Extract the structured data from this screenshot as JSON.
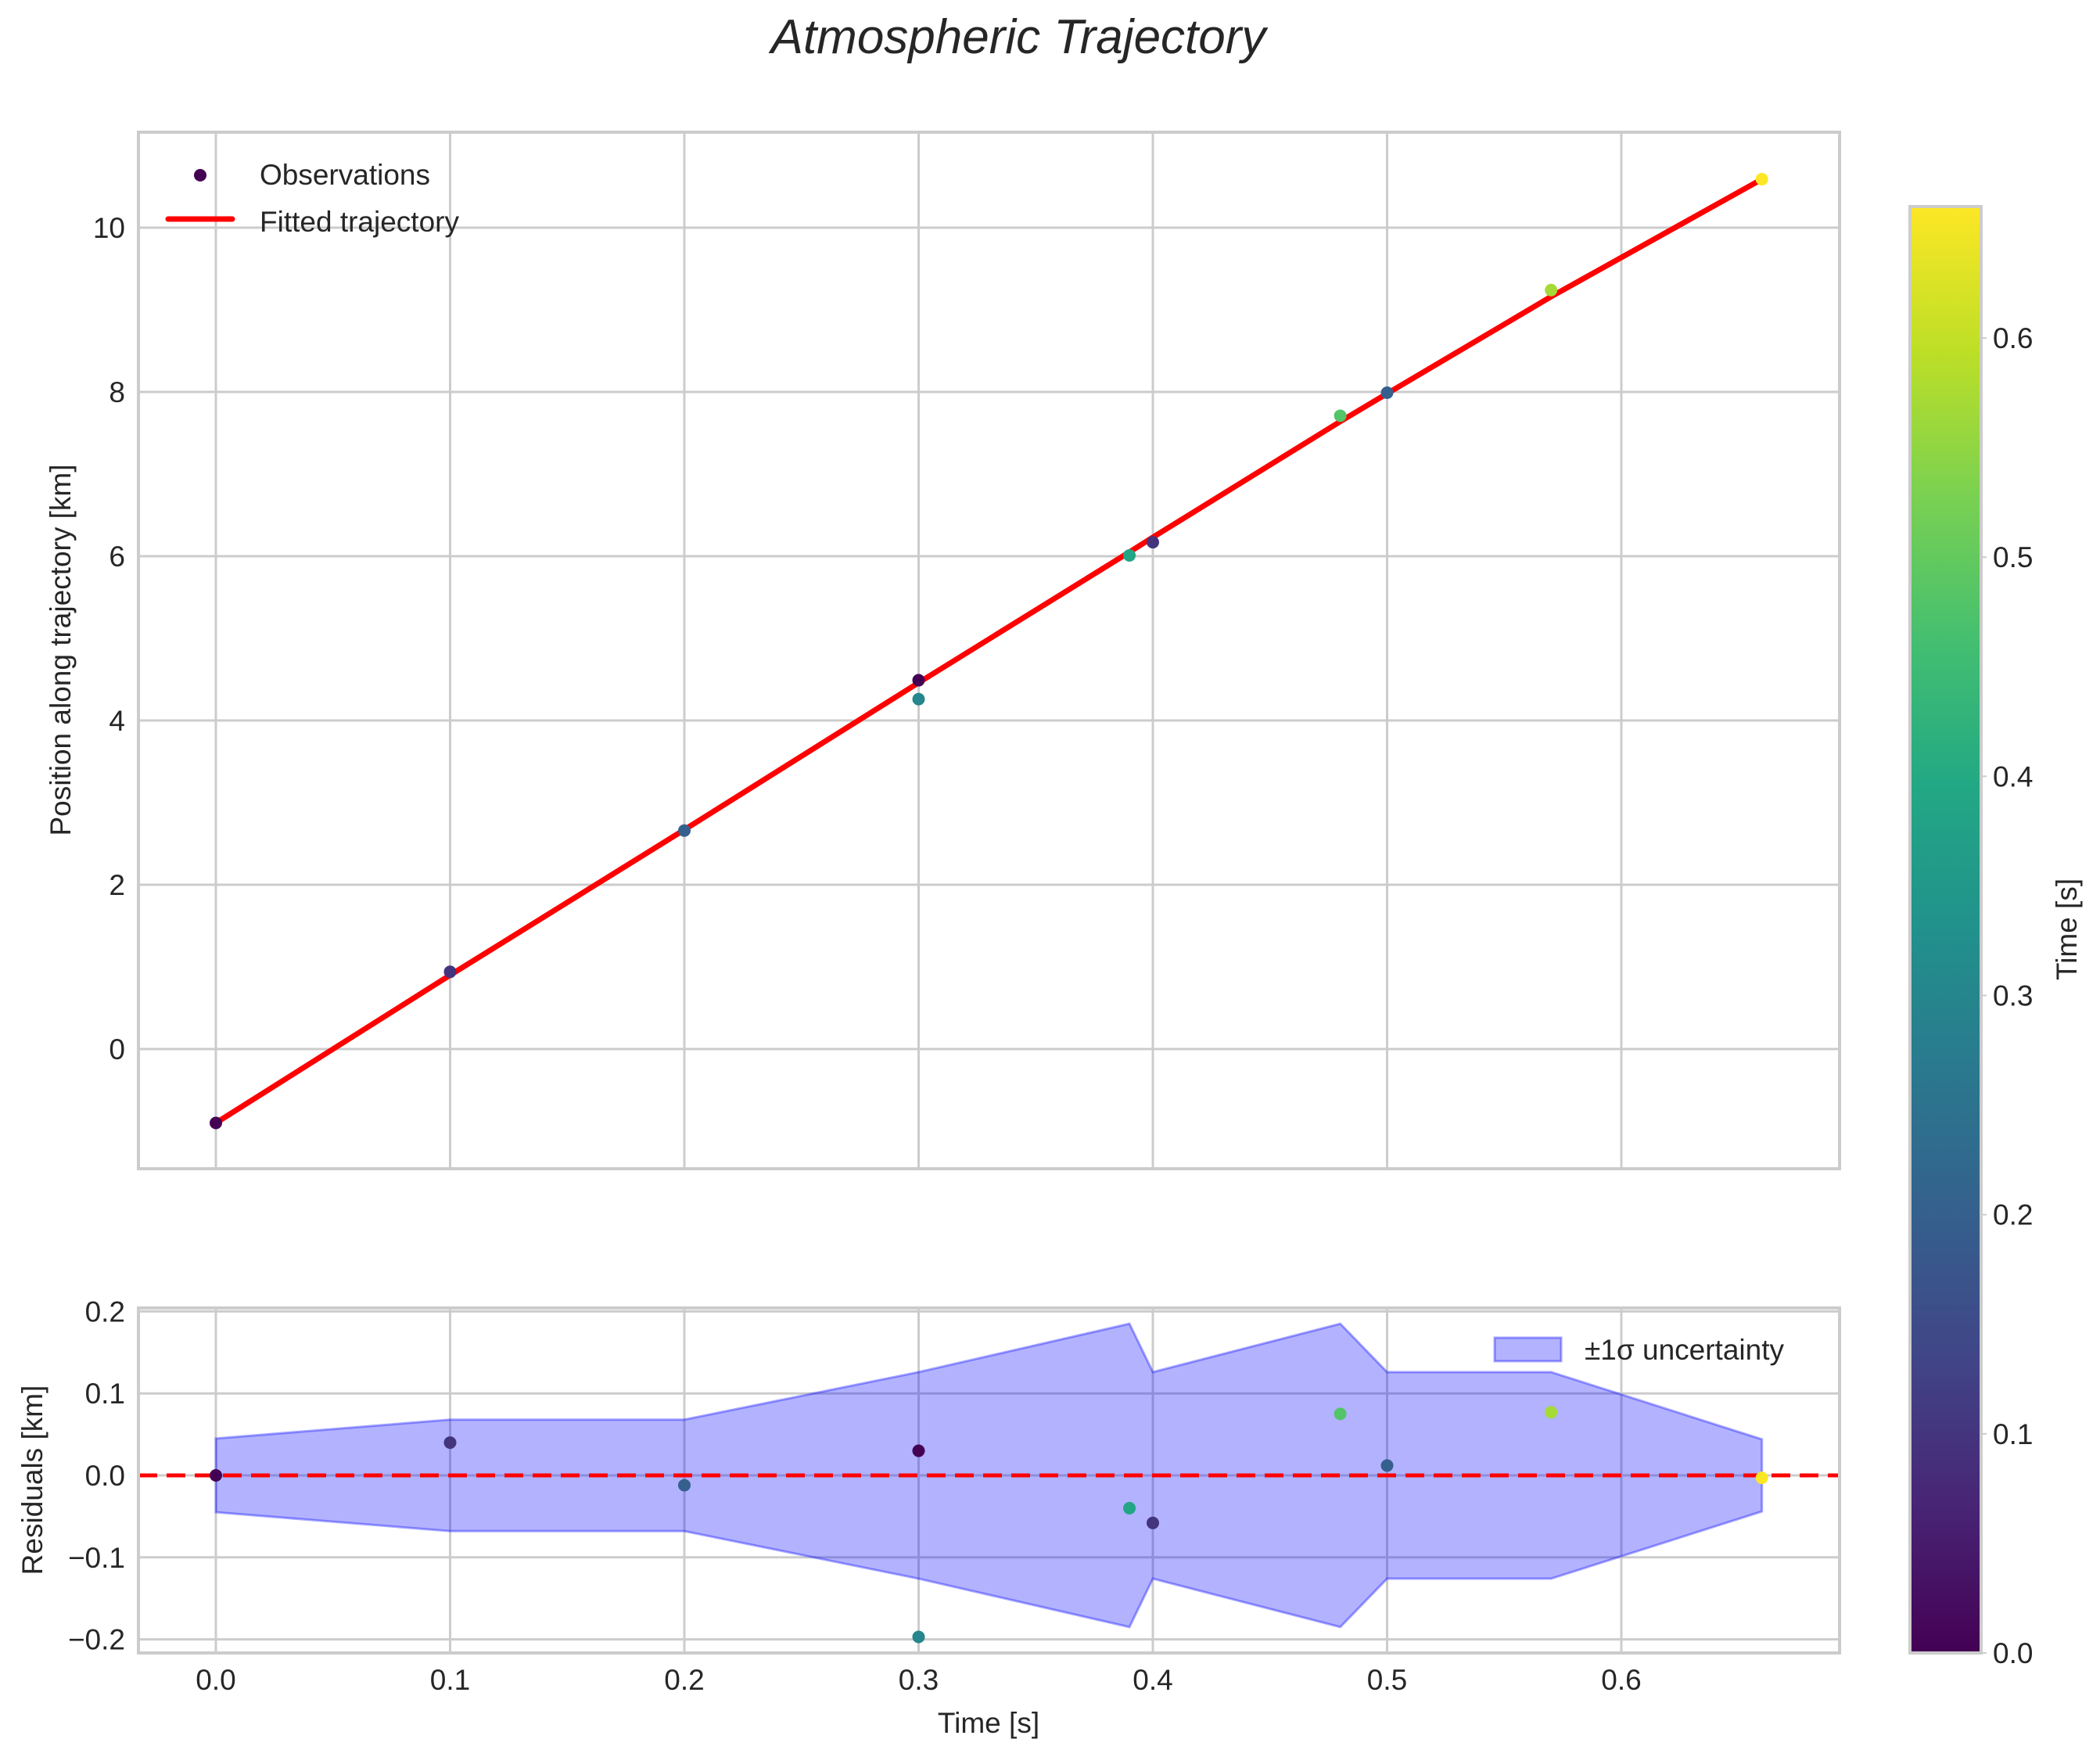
{
  "figure": {
    "title": "Atmospheric Trajectory"
  },
  "chart_data": [
    {
      "type": "scatter",
      "panel": "main",
      "title": "Atmospheric Trajectory",
      "xlabel": "",
      "ylabel": "Position along trajectory [km]",
      "xlim": [
        -0.034,
        0.693
      ],
      "ylim": [
        -1.45,
        11.15
      ],
      "xticks": [
        0.0,
        0.1,
        0.2,
        0.3,
        0.4,
        0.5,
        0.6
      ],
      "yticks": [
        0,
        2,
        4,
        6,
        8,
        10
      ],
      "ytick_labels": [
        "0",
        "2",
        "4",
        "6",
        "8",
        "10"
      ],
      "grid": true,
      "legend": {
        "position": "upper left",
        "entries": [
          "Observations",
          "Fitted trajectory"
        ]
      },
      "series": [
        {
          "name": "Observations",
          "kind": "scatter",
          "colormap": "viridis",
          "x": [
            0.0,
            0.1,
            0.2,
            0.3,
            0.3,
            0.39,
            0.4,
            0.48,
            0.5,
            0.57,
            0.66
          ],
          "y": [
            -0.9,
            0.94,
            2.66,
            4.49,
            4.26,
            6.01,
            6.17,
            7.71,
            7.99,
            9.24,
            10.59
          ],
          "color_value": [
            0.0,
            0.1,
            0.2,
            0.0,
            0.3,
            0.39,
            0.1,
            0.48,
            0.2,
            0.57,
            0.66
          ]
        },
        {
          "name": "Fitted trajectory",
          "kind": "line",
          "color": "#ff0000",
          "x": [
            0.0,
            0.1,
            0.2,
            0.3,
            0.39,
            0.4,
            0.48,
            0.5,
            0.57,
            0.66
          ],
          "y": [
            -0.9,
            0.9,
            2.67,
            4.46,
            6.05,
            6.23,
            7.64,
            7.98,
            9.16,
            10.59
          ]
        }
      ]
    },
    {
      "type": "scatter",
      "panel": "residuals",
      "xlabel": "Time [s]",
      "ylabel": "Residuals [km]",
      "xlim": [
        -0.034,
        0.693
      ],
      "ylim": [
        -0.216,
        0.205
      ],
      "xticks": [
        0.0,
        0.1,
        0.2,
        0.3,
        0.4,
        0.5,
        0.6
      ],
      "xtick_labels": [
        "0.0",
        "0.1",
        "0.2",
        "0.3",
        "0.4",
        "0.5",
        "0.6"
      ],
      "yticks": [
        0.2,
        0.1,
        0.0,
        -0.1,
        -0.2
      ],
      "ytick_labels": [
        "0.2",
        "0.1",
        "0.0",
        "−0.1",
        "−0.2"
      ],
      "grid": true,
      "legend": {
        "position": "upper right",
        "entries": [
          "±1σ uncertainty"
        ]
      },
      "zero_line": {
        "y": 0.0,
        "style": "dashed",
        "color": "#ff0000"
      },
      "band": {
        "name": "±1σ uncertainty",
        "color": "#0000ff",
        "alpha": 0.3,
        "x": [
          0.0,
          0.1,
          0.2,
          0.3,
          0.39,
          0.4,
          0.48,
          0.5,
          0.57,
          0.66
        ],
        "sigma": [
          0.045,
          0.068,
          0.068,
          0.126,
          0.185,
          0.126,
          0.185,
          0.126,
          0.126,
          0.044
        ]
      },
      "series": [
        {
          "name": "Residuals",
          "x": [
            0.0,
            0.1,
            0.2,
            0.3,
            0.3,
            0.39,
            0.4,
            0.48,
            0.5,
            0.57,
            0.66
          ],
          "y": [
            0.0,
            0.04,
            -0.012,
            0.03,
            -0.197,
            -0.04,
            -0.058,
            0.075,
            0.012,
            0.077,
            -0.003
          ],
          "color_value": [
            0.0,
            0.1,
            0.2,
            0.0,
            0.3,
            0.39,
            0.1,
            0.48,
            0.2,
            0.57,
            0.66
          ]
        }
      ]
    },
    {
      "type": "colorbar",
      "label": "Time [s]",
      "colormap": "viridis",
      "range": [
        0.0,
        0.66
      ],
      "ticks": [
        0.0,
        0.1,
        0.2,
        0.3,
        0.4,
        0.5,
        0.6
      ],
      "tick_labels": [
        "0.0",
        "0.1",
        "0.2",
        "0.3",
        "0.4",
        "0.5",
        "0.6"
      ]
    }
  ],
  "labels": {
    "main_ylabel": "Position along trajectory [km]",
    "res_ylabel": "Residuals [km]",
    "xlabel": "Time [s]",
    "cbar_label": "Time [s]",
    "legend_obs": "Observations",
    "legend_fit": "Fitted trajectory",
    "legend_band": "±1σ uncertainty"
  },
  "colors": {
    "fit_line": "#ff0000",
    "band_fill": "#b3b3ff",
    "band_edge": "#7070f0",
    "grid": "#cccccc",
    "text": "#262626"
  }
}
